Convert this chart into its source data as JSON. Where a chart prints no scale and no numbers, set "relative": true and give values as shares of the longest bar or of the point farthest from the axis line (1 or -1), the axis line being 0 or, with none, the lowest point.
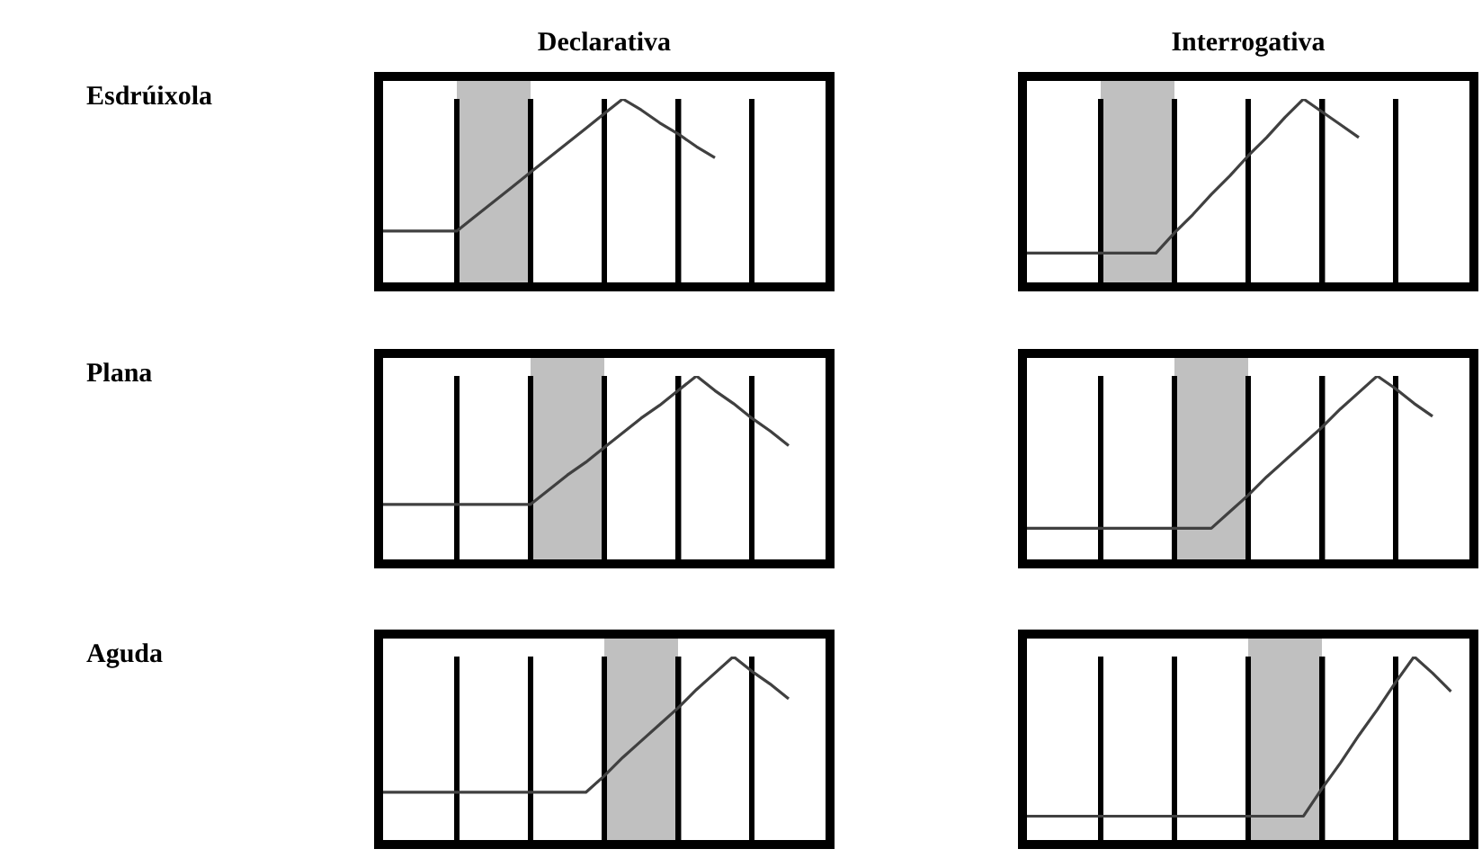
{
  "chart_data": [
    {
      "type": "line",
      "title": "Declarativa",
      "ylabel": "Esdrúixola",
      "relative": true,
      "grid": "x",
      "categories": [
        null,
        null,
        null,
        null,
        null,
        null,
        null,
        null,
        null,
        null,
        null,
        null,
        null,
        null,
        null,
        null,
        null,
        null,
        null,
        null,
        null,
        null,
        null,
        null,
        null
      ],
      "tick_labels": false,
      "series": [
        {
          "color": "#404040",
          "values": [
            0.28,
            0.28,
            0.28,
            0.28,
            0.28,
            0.36,
            0.44,
            0.52,
            0.6,
            0.68,
            0.76,
            0.84,
            0.92,
            1,
            0.94,
            0.87,
            0.81,
            0.74,
            0.68,
            null,
            null,
            null,
            null,
            null,
            null
          ]
        }
      ]
    },
    {
      "type": "line",
      "title": "Interrogativa",
      "relative": true,
      "grid": "x",
      "categories": [
        null,
        null,
        null,
        null,
        null,
        null,
        null,
        null,
        null,
        null,
        null,
        null,
        null,
        null,
        null,
        null,
        null,
        null,
        null,
        null,
        null,
        null,
        null,
        null,
        null
      ],
      "tick_labels": false,
      "series": [
        {
          "color": "#404040",
          "values": [
            0.16,
            0.16,
            0.16,
            0.16,
            0.16,
            0.16,
            0.16,
            0.16,
            0.27,
            0.37,
            0.48,
            0.58,
            0.69,
            0.79,
            0.9,
            1,
            0.93,
            0.86,
            0.79,
            null,
            null,
            null,
            null,
            null,
            null
          ]
        }
      ]
    },
    {
      "type": "line",
      "ylabel": "Plana",
      "relative": true,
      "grid": "x",
      "categories": [
        null,
        null,
        null,
        null,
        null,
        null,
        null,
        null,
        null,
        null,
        null,
        null,
        null,
        null,
        null,
        null,
        null,
        null,
        null,
        null,
        null,
        null,
        null,
        null,
        null
      ],
      "tick_labels": false,
      "series": [
        {
          "color": "#404040",
          "values": [
            0.3,
            0.3,
            0.3,
            0.3,
            0.3,
            0.3,
            0.3,
            0.3,
            0.3,
            0.38,
            0.46,
            0.53,
            0.61,
            0.69,
            0.77,
            0.84,
            0.92,
            1,
            0.92,
            0.85,
            0.77,
            0.7,
            0.62,
            null,
            null
          ]
        }
      ]
    },
    {
      "type": "line",
      "relative": true,
      "categories": [
        null,
        null,
        null,
        null,
        null,
        null,
        null,
        null,
        null,
        null,
        null,
        null,
        null,
        null,
        null,
        null,
        null,
        null,
        null,
        null,
        null,
        null,
        null,
        null,
        null
      ],
      "tick_labels": false,
      "grid": "x",
      "series": [
        {
          "color": "#404040",
          "values": [
            0.17,
            0.17,
            0.17,
            0.17,
            0.17,
            0.17,
            0.17,
            0.17,
            0.17,
            0.17,
            0.17,
            0.26,
            0.35,
            0.45,
            0.54,
            0.63,
            0.72,
            0.82,
            0.91,
            1,
            0.93,
            0.85,
            0.78,
            null,
            null
          ]
        }
      ]
    },
    {
      "type": "line",
      "ylabel": "Aguda",
      "relative": true,
      "grid": "x",
      "categories": [
        null,
        null,
        null,
        null,
        null,
        null,
        null,
        null,
        null,
        null,
        null,
        null,
        null,
        null,
        null,
        null,
        null,
        null,
        null,
        null,
        null,
        null,
        null,
        null,
        null
      ],
      "tick_labels": false,
      "series": [
        {
          "color": "#404040",
          "values": [
            0.26,
            0.26,
            0.26,
            0.26,
            0.26,
            0.26,
            0.26,
            0.26,
            0.26,
            0.26,
            0.26,
            0.26,
            0.35,
            0.45,
            0.54,
            0.63,
            0.72,
            0.82,
            0.91,
            1,
            0.92,
            0.85,
            0.77,
            null,
            null
          ]
        }
      ]
    },
    {
      "type": "line",
      "relative": true,
      "categories": [
        null,
        null,
        null,
        null,
        null,
        null,
        null,
        null,
        null,
        null,
        null,
        null,
        null,
        null,
        null,
        null,
        null,
        null,
        null,
        null,
        null,
        null,
        null,
        null,
        null
      ],
      "tick_labels": false,
      "grid": "x",
      "series": [
        {
          "color": "#404040",
          "values": [
            0.13,
            0.13,
            0.13,
            0.13,
            0.13,
            0.13,
            0.13,
            0.13,
            0.13,
            0.13,
            0.13,
            0.13,
            0.13,
            0.13,
            0.13,
            0.13,
            0.28,
            0.42,
            0.57,
            0.71,
            0.86,
            1,
            0.91,
            0.81,
            null
          ]
        }
      ]
    }
  ]
}
